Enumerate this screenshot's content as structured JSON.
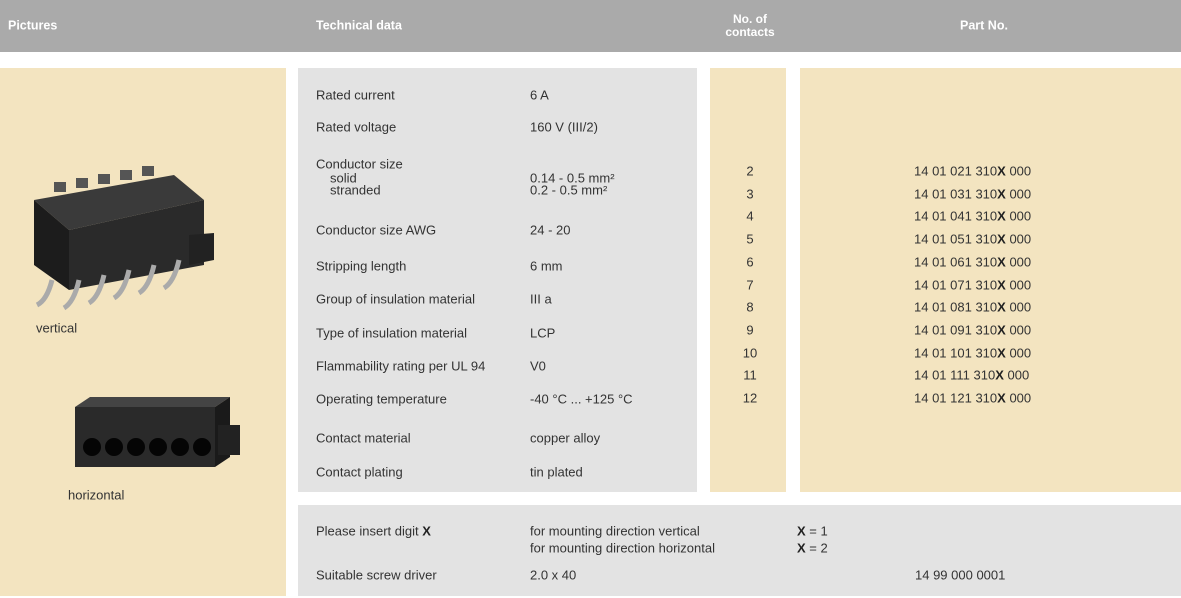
{
  "header": {
    "pictures": "Pictures",
    "technical_data": "Technical data",
    "contacts": "No. of contacts",
    "part_no": "Part No."
  },
  "pictures": [
    "vertical",
    "horizontal"
  ],
  "technical_data": [
    {
      "label": "Rated current",
      "value": "6 A"
    },
    {
      "label": "Rated voltage",
      "value": "160 V (III/2)"
    },
    {
      "label": "Conductor size",
      "sub": [
        {
          "label": "solid",
          "value": "0.14 - 0.5 mm²"
        },
        {
          "label": "stranded",
          "value": "0.2 - 0.5 mm²"
        }
      ]
    },
    {
      "label": "Conductor size AWG",
      "value": "24 - 20"
    },
    {
      "label": "Stripping length",
      "value": "6 mm"
    },
    {
      "label": "Group of insulation material",
      "value": "III a"
    },
    {
      "label": "Type of insulation material",
      "value": "LCP"
    },
    {
      "label": "Flammability rating per UL 94",
      "value": "V0"
    },
    {
      "label": "Operating temperature",
      "value": "-40 °C ... +125 °C"
    },
    {
      "label": "Contact material",
      "value": "copper alloy"
    },
    {
      "label": "Contact plating",
      "value": "tin plated"
    }
  ],
  "contacts": [
    2,
    3,
    4,
    5,
    6,
    7,
    8,
    9,
    10,
    11,
    12
  ],
  "part_numbers": [
    {
      "prefix": "14 01 021 310",
      "digit": "X",
      "suffix": "000"
    },
    {
      "prefix": "14 01 031 310",
      "digit": "X",
      "suffix": "000"
    },
    {
      "prefix": "14 01 041 310",
      "digit": "X",
      "suffix": "000"
    },
    {
      "prefix": "14 01 051 310",
      "digit": "X",
      "suffix": "000"
    },
    {
      "prefix": "14 01 061 310",
      "digit": "X",
      "suffix": "000"
    },
    {
      "prefix": "14 01 071 310",
      "digit": "X",
      "suffix": "000"
    },
    {
      "prefix": "14 01 081 310",
      "digit": "X",
      "suffix": "000"
    },
    {
      "prefix": "14 01 091 310",
      "digit": "X",
      "suffix": "000"
    },
    {
      "prefix": "14 01 101 310",
      "digit": "X",
      "suffix": "000"
    },
    {
      "prefix": "14 01 111 310",
      "digit": "X",
      "suffix": "000"
    },
    {
      "prefix": "14 01 121 310",
      "digit": "X",
      "suffix": "000"
    }
  ],
  "notes": {
    "insert": {
      "text": "Please insert digit",
      "digit": "X"
    },
    "options": [
      {
        "text": "for mounting direction vertical",
        "digit": "X",
        "value": "= 1"
      },
      {
        "text": "for mounting direction horizontal",
        "digit": "X",
        "value": "= 2"
      }
    ],
    "screwdriver": {
      "label": "Suitable screw driver",
      "size": "2.0 x 40",
      "part_no": "14 99 000 0001"
    }
  }
}
